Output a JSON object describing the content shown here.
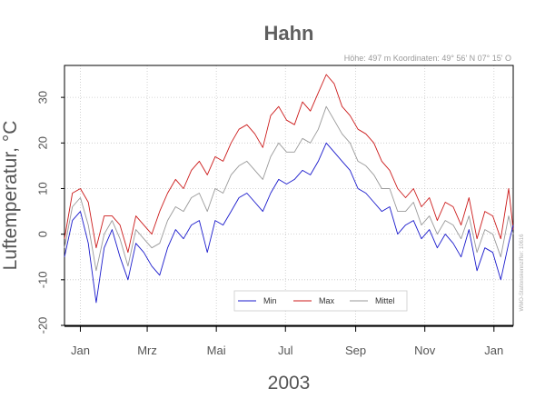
{
  "chart_data": {
    "type": "line",
    "title": "Hahn",
    "subtitle": "Höhe: 497 m    Koordinaten: 49° 56' N  07° 15' O",
    "side_note": "WMO-Stationskennziffer: 10616",
    "xlabel": "2003",
    "ylabel": "Luftemperatur, °C",
    "x_ticks": [
      "Jan",
      "Mrz",
      "Mai",
      "Jul",
      "Sep",
      "Nov",
      "Jan"
    ],
    "x_tick_days": [
      15,
      74,
      135,
      196,
      258,
      319,
      380
    ],
    "y_ticks": [
      -20,
      -10,
      0,
      10,
      20,
      30
    ],
    "xlim": [
      1,
      397
    ],
    "ylim": [
      -20,
      37
    ],
    "grid": true,
    "legend_position": "bottom-center",
    "x": [
      1,
      8,
      15,
      22,
      29,
      36,
      43,
      50,
      57,
      64,
      71,
      78,
      85,
      92,
      99,
      106,
      113,
      120,
      127,
      134,
      141,
      148,
      155,
      162,
      169,
      176,
      183,
      190,
      197,
      204,
      211,
      218,
      225,
      232,
      239,
      246,
      253,
      260,
      267,
      274,
      281,
      288,
      295,
      302,
      309,
      316,
      323,
      330,
      337,
      344,
      351,
      358,
      365,
      372,
      379,
      386,
      393,
      397
    ],
    "series": [
      {
        "name": "Min",
        "color": "#1a1acc",
        "values": [
          -5,
          3,
          5,
          -2,
          -15,
          -3,
          1,
          -5,
          -10,
          -2,
          -4,
          -7,
          -9,
          -3,
          1,
          -1,
          2,
          3,
          -4,
          3,
          2,
          5,
          8,
          9,
          7,
          5,
          9,
          12,
          11,
          12,
          14,
          13,
          16,
          20,
          18,
          16,
          14,
          10,
          9,
          7,
          5,
          6,
          0,
          2,
          3,
          -1,
          1,
          -3,
          0,
          -2,
          -5,
          1,
          -8,
          -3,
          -4,
          -10,
          -2,
          2
        ]
      },
      {
        "name": "Max",
        "color": "#cc1a1a",
        "values": [
          -1,
          9,
          10,
          7,
          -3,
          4,
          4,
          2,
          -4,
          4,
          2,
          0,
          5,
          9,
          12,
          10,
          14,
          16,
          13,
          17,
          16,
          20,
          23,
          24,
          22,
          19,
          26,
          28,
          25,
          24,
          29,
          27,
          31,
          35,
          33,
          28,
          26,
          23,
          22,
          20,
          16,
          14,
          10,
          8,
          10,
          6,
          8,
          3,
          7,
          6,
          2,
          8,
          -1,
          5,
          4,
          -1,
          10,
          1
        ]
      },
      {
        "name": "Mittel",
        "color": "#999999",
        "values": [
          -3,
          6,
          8,
          2,
          -8,
          0,
          3,
          -1,
          -7,
          1,
          -1,
          -3,
          -2,
          3,
          6,
          5,
          8,
          9,
          5,
          10,
          9,
          13,
          15,
          16,
          14,
          12,
          17,
          20,
          18,
          18,
          21,
          20,
          23,
          28,
          25,
          22,
          20,
          16,
          15,
          13,
          10,
          10,
          5,
          5,
          7,
          2,
          4,
          0,
          3,
          2,
          -1,
          4,
          -4,
          1,
          0,
          -5,
          4,
          0
        ]
      }
    ]
  }
}
